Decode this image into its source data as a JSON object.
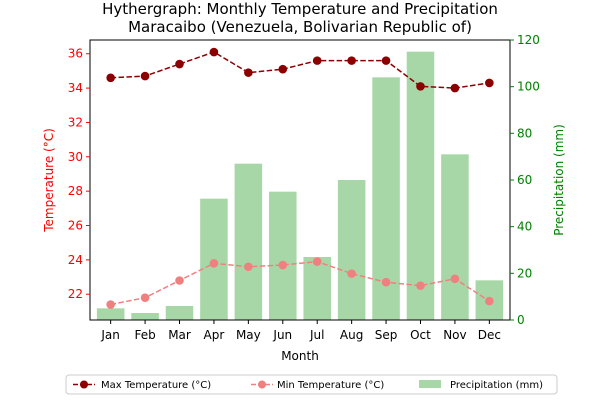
{
  "chart_data": {
    "type": "bar+line",
    "title_line1": "Hythergraph: Monthly Temperature and Precipitation",
    "title_line2": "Maracaibo (Venezuela, Bolivarian Republic of)",
    "xlabel": "Month",
    "ylabel_left": "Temperature (°C)",
    "ylabel_right": "Precipitation (mm)",
    "categories": [
      "Jan",
      "Feb",
      "Mar",
      "Apr",
      "May",
      "Jun",
      "Jul",
      "Aug",
      "Sep",
      "Oct",
      "Nov",
      "Dec"
    ],
    "ylim_left": [
      20.5,
      36.8
    ],
    "ylim_right": [
      0,
      120
    ],
    "yticks_left": [
      "22",
      "24",
      "26",
      "28",
      "30",
      "32",
      "34",
      "36"
    ],
    "yticks_right": [
      "0",
      "20",
      "40",
      "60",
      "80",
      "100",
      "120"
    ],
    "series": [
      {
        "name": "Max Temperature (°C)",
        "kind": "line",
        "axis": "left",
        "color": "#8b0000",
        "values": [
          34.6,
          34.7,
          35.4,
          36.1,
          34.9,
          35.1,
          35.6,
          35.6,
          35.6,
          34.1,
          34.0,
          34.3
        ]
      },
      {
        "name": "Min Temperature (°C)",
        "kind": "line",
        "axis": "left",
        "color": "#f08080",
        "values": [
          21.4,
          21.8,
          22.8,
          23.8,
          23.6,
          23.7,
          23.9,
          23.2,
          22.7,
          22.5,
          22.9,
          21.6
        ]
      },
      {
        "name": "Precipitation (mm)",
        "kind": "bar",
        "axis": "right",
        "color": "#a7d7a7",
        "values": [
          5,
          3,
          6,
          52,
          67,
          55,
          27,
          60,
          104,
          115,
          71,
          17
        ]
      }
    ],
    "left_axis_color": "#ff0000",
    "right_axis_color": "#008000",
    "legend_position": "bottom-center",
    "grid": false
  }
}
